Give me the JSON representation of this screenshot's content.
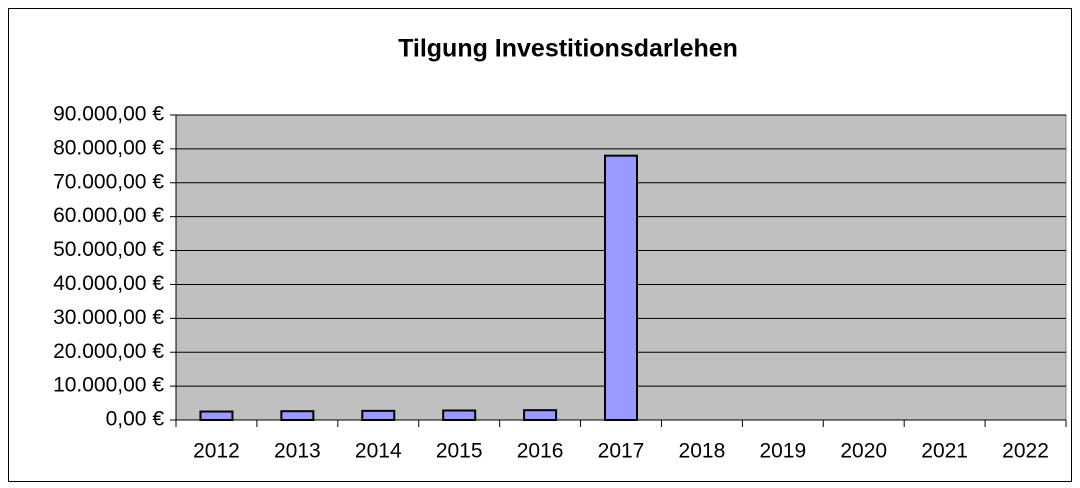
{
  "chart_data": {
    "type": "bar",
    "title": "Tilgung Investitionsdarlehen",
    "categories": [
      "2012",
      "2013",
      "2014",
      "2015",
      "2016",
      "2017",
      "2018",
      "2019",
      "2020",
      "2021",
      "2022"
    ],
    "values": [
      2500,
      2600,
      2700,
      2800,
      2900,
      78000,
      0,
      0,
      0,
      0,
      0
    ],
    "color": "#9999ff",
    "ylim": [
      0,
      90000
    ],
    "yticks": [
      {
        "value": 0,
        "label": "0,00 €"
      },
      {
        "value": 10000,
        "label": "10.000,00 €"
      },
      {
        "value": 20000,
        "label": "20.000,00 €"
      },
      {
        "value": 30000,
        "label": "30.000,00 €"
      },
      {
        "value": 40000,
        "label": "40.000,00 €"
      },
      {
        "value": 50000,
        "label": "50.000,00 €"
      },
      {
        "value": 60000,
        "label": "60.000,00 €"
      },
      {
        "value": 70000,
        "label": "70.000,00 €"
      },
      {
        "value": 80000,
        "label": "80.000,00 €"
      },
      {
        "value": 90000,
        "label": "90.000,00 €"
      }
    ],
    "grid": true
  }
}
